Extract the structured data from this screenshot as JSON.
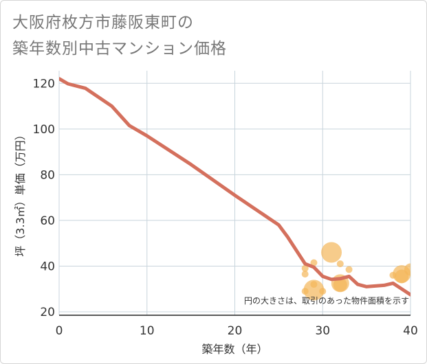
{
  "title_lines": [
    "大阪府枚方市藤阪東町の",
    "築年数別中古マンション価格"
  ],
  "chart_data": {
    "type": "scatter",
    "title": "大阪府枚方市藤阪東町の築年数別中古マンション価格",
    "xlabel": "築年数（年）",
    "ylabel": "坪（3.3㎡）単価（万円）",
    "xlim": [
      0,
      40
    ],
    "ylim": [
      18.5,
      125.5
    ],
    "x_ticks": [
      0,
      10,
      20,
      30,
      40
    ],
    "y_ticks": [
      20,
      40,
      60,
      80,
      100,
      120
    ],
    "grid": true,
    "annotation": "円の大きさは、取引のあった物件面積を示す",
    "colors": {
      "line": "#d4705d",
      "bubble": "#f4b75a",
      "grid": "#c8d4dc",
      "axis": "#222222"
    },
    "trend_line": {
      "x": [
        0,
        1,
        3,
        6,
        8,
        10,
        15,
        20,
        25,
        26,
        28,
        29,
        30,
        31,
        32,
        33,
        34,
        35,
        37,
        38,
        39,
        40
      ],
      "y": [
        122,
        119.8,
        117.8,
        110,
        101.5,
        97,
        84.5,
        71,
        58,
        52.8,
        41,
        39.5,
        35.5,
        34.2,
        34.5,
        35.5,
        32,
        31,
        31.6,
        32.5,
        30,
        27.5
      ]
    },
    "points": [
      {
        "x": 28,
        "y": 29,
        "size": 5
      },
      {
        "x": 28,
        "y": 36.5,
        "size": 5
      },
      {
        "x": 28,
        "y": 39,
        "size": 5
      },
      {
        "x": 29,
        "y": 41.5,
        "size": 5
      },
      {
        "x": 29,
        "y": 32,
        "size": 5
      },
      {
        "x": 29,
        "y": 29.5,
        "size": 15
      },
      {
        "x": 30,
        "y": 29,
        "size": 5
      },
      {
        "x": 31,
        "y": 46,
        "size": 15
      },
      {
        "x": 32,
        "y": 41,
        "size": 5
      },
      {
        "x": 32,
        "y": 32.5,
        "size": 13
      },
      {
        "x": 32,
        "y": 31.8,
        "size": 10
      },
      {
        "x": 33,
        "y": 38.5,
        "size": 5
      },
      {
        "x": 38,
        "y": 36,
        "size": 5
      },
      {
        "x": 39,
        "y": 36.5,
        "size": 13
      },
      {
        "x": 39,
        "y": 35.5,
        "size": 10
      },
      {
        "x": 40,
        "y": 38.5,
        "size": 9
      }
    ]
  }
}
